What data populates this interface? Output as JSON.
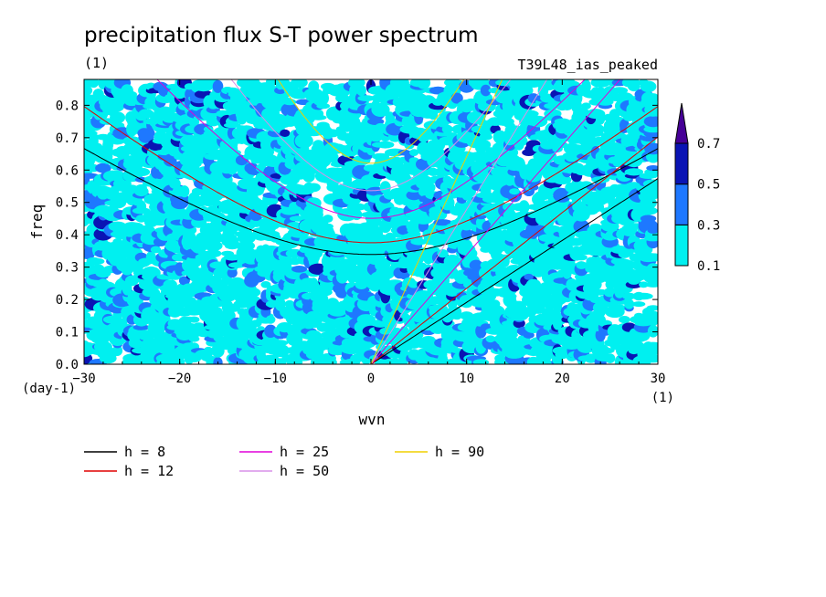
{
  "chart_data": {
    "type": "heatmap",
    "title": "precipitation flux S-T power spectrum",
    "unit_label": "(1)",
    "experiment": "T39L48_ias_peaked",
    "xlabel": "wvn",
    "ylabel": "freq",
    "x_unit": "(1)",
    "y_unit": "(day-1)",
    "xlim": [
      -30,
      30
    ],
    "ylim": [
      0,
      0.88
    ],
    "xticks": [
      -30,
      -20,
      -10,
      0,
      10,
      20,
      30
    ],
    "yticks": [
      0.0,
      0.1,
      0.2,
      0.3,
      0.4,
      0.5,
      0.6,
      0.7,
      0.8
    ],
    "xtick_labels": [
      "−30",
      "−20",
      "−10",
      "0",
      "10",
      "20",
      "30"
    ],
    "ytick_labels": [
      "0.0",
      "0.1",
      "0.2",
      "0.3",
      "0.4",
      "0.5",
      "0.6",
      "0.7",
      "0.8"
    ],
    "contour_levels": [
      0.1,
      0.3,
      0.5,
      0.7
    ],
    "colorbar_labels": [
      "0.1",
      "0.3",
      "0.5",
      "0.7"
    ],
    "level_colors": [
      "#00f0f0",
      "#1e78ff",
      "#0a14b4",
      "#460096"
    ],
    "dispersion_curves": [
      {
        "name": "h =  8",
        "h": 8,
        "color": "#000000"
      },
      {
        "name": "h = 12",
        "h": 12,
        "color": "#e00000"
      },
      {
        "name": "h = 25",
        "h": 25,
        "color": "#e000d8"
      },
      {
        "name": "h = 50",
        "h": 50,
        "color": "#d890e8"
      },
      {
        "name": "h = 90",
        "h": 90,
        "color": "#f0d000"
      }
    ],
    "grid": false,
    "legend_position": "bottom-left"
  }
}
